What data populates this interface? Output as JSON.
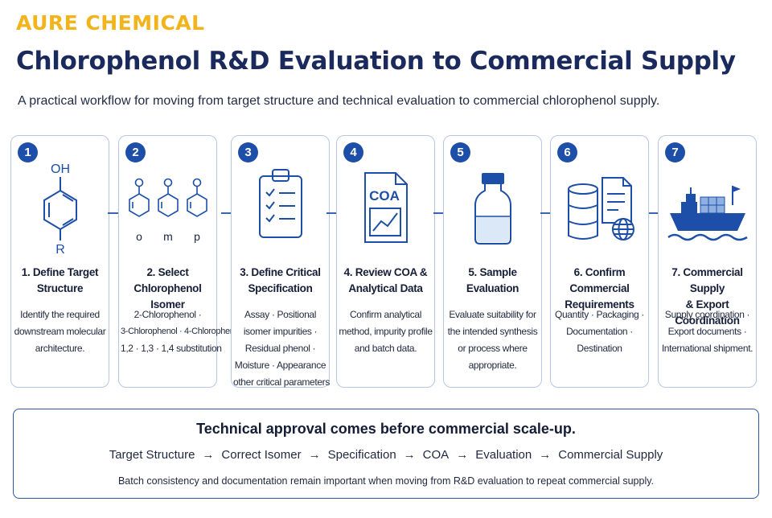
{
  "brand": "AURE CHEMICAL",
  "title": "Chlorophenol R&D Evaluation to Commercial Supply",
  "subtitle": "A practical workflow for moving from target structure and technical evaluation to commercial chlorophenol supply.",
  "colors": {
    "brand": "#f2b31b",
    "navy": "#1b2a5c",
    "accent": "#1d4fa8",
    "border": "#b7c6e2"
  },
  "steps": [
    {
      "number": "1",
      "icon": "target-structure-icon",
      "icon_labels": {
        "top": "OH",
        "bottom": "R"
      },
      "title": [
        "1. Define Target",
        "Structure"
      ],
      "desc": [
        "Identify the required",
        "downstream molecular",
        "architecture."
      ]
    },
    {
      "number": "2",
      "icon": "isomer-rings-icon",
      "icon_labels": {
        "ring1": "o",
        "ring2": "m",
        "ring3": "p"
      },
      "title": [
        "2. Select Chlorophenol",
        "Isomer"
      ],
      "desc": [
        "2-Chlorophenol ·",
        "3-Chlorophenol · 4-Chlorophenol",
        "1,2 · 1,3 · 1,4 substitution"
      ]
    },
    {
      "number": "3",
      "icon": "clipboard-checklist-icon",
      "title": [
        "3. Define Critical",
        "Specification"
      ],
      "desc": [
        "Assay · Positional",
        "isomer impurities ·",
        "Residual phenol ·",
        "Moisture · Appearance",
        "other critical parameters"
      ]
    },
    {
      "number": "4",
      "icon": "coa-document-icon",
      "icon_labels": {
        "doc": "COA"
      },
      "title": [
        "4. Review COA &",
        "Analytical Data"
      ],
      "desc": [
        "Confirm analytical",
        "method, impurity profile",
        "and batch data."
      ]
    },
    {
      "number": "5",
      "icon": "sample-bottle-icon",
      "title": [
        "5. Sample",
        "Evaluation"
      ],
      "desc": [
        "Evaluate suitability for",
        "the intended synthesis",
        "or process where",
        "appropriate."
      ]
    },
    {
      "number": "6",
      "icon": "drum-document-globe-icon",
      "title": [
        "6. Confirm Commercial",
        "Requirements"
      ],
      "desc": [
        "Quantity · Packaging ·",
        "Documentation ·",
        "Destination"
      ]
    },
    {
      "number": "7",
      "icon": "cargo-ship-icon",
      "title": [
        "7. Commercial Supply",
        "& Export Coordination"
      ],
      "desc": [
        "Supply coordination ·",
        "Export documents ·",
        "International shipment."
      ]
    }
  ],
  "summary": {
    "heading": "Technical approval comes before commercial scale-up.",
    "flow": [
      "Target Structure",
      "Correct Isomer",
      "Specification",
      "COA",
      "Evaluation",
      "Commercial Supply"
    ],
    "separator": "→",
    "note": "Batch consistency and documentation remain important when moving from R&D evaluation to repeat commercial supply."
  }
}
